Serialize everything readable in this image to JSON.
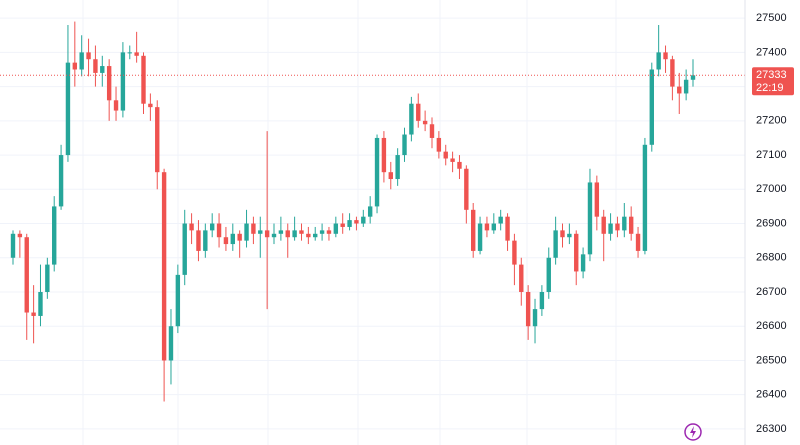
{
  "chart_data": {
    "type": "candlestick",
    "candles": [
      [
        26800,
        26880,
        26780,
        26870
      ],
      [
        26870,
        26880,
        26800,
        26860
      ],
      [
        26860,
        26870,
        26560,
        26640
      ],
      [
        26640,
        26720,
        26550,
        26630
      ],
      [
        26630,
        26780,
        26600,
        26700
      ],
      [
        26700,
        26800,
        26680,
        26780
      ],
      [
        26780,
        26980,
        26760,
        26950
      ],
      [
        26950,
        27130,
        26940,
        27100
      ],
      [
        27100,
        27480,
        27080,
        27370
      ],
      [
        27370,
        27490,
        27300,
        27350
      ],
      [
        27350,
        27450,
        27330,
        27400
      ],
      [
        27400,
        27440,
        27330,
        27380
      ],
      [
        27380,
        27420,
        27300,
        27340
      ],
      [
        27340,
        27390,
        27300,
        27360
      ],
      [
        27360,
        27380,
        27200,
        27260
      ],
      [
        27260,
        27300,
        27200,
        27230
      ],
      [
        27230,
        27430,
        27210,
        27400
      ],
      [
        27400,
        27420,
        27380,
        27400
      ],
      [
        27400,
        27460,
        27370,
        27390
      ],
      [
        27390,
        27400,
        27220,
        27250
      ],
      [
        27250,
        27280,
        27200,
        27240
      ],
      [
        27240,
        27260,
        27000,
        27050
      ],
      [
        27050,
        27060,
        26380,
        26500
      ],
      [
        26500,
        26650,
        26430,
        26600
      ],
      [
        26600,
        26780,
        26580,
        26750
      ],
      [
        26750,
        26940,
        26720,
        26900
      ],
      [
        26900,
        26930,
        26840,
        26880
      ],
      [
        26880,
        26910,
        26790,
        26820
      ],
      [
        26820,
        26900,
        26800,
        26880
      ],
      [
        26880,
        26930,
        26860,
        26900
      ],
      [
        26900,
        26930,
        26830,
        26860
      ],
      [
        26860,
        26890,
        26820,
        26840
      ],
      [
        26840,
        26900,
        26820,
        26870
      ],
      [
        26870,
        26880,
        26800,
        26850
      ],
      [
        26850,
        26940,
        26830,
        26900
      ],
      [
        26900,
        26920,
        26840,
        26870
      ],
      [
        26870,
        26920,
        26800,
        26880
      ],
      [
        26880,
        27170,
        26650,
        26860
      ],
      [
        26860,
        26900,
        26840,
        26870
      ],
      [
        26870,
        26920,
        26850,
        26880
      ],
      [
        26880,
        26900,
        26800,
        26860
      ],
      [
        26860,
        26920,
        26850,
        26880
      ],
      [
        26880,
        26900,
        26850,
        26870
      ],
      [
        26870,
        26890,
        26840,
        26860
      ],
      [
        26860,
        26890,
        26850,
        26870
      ],
      [
        26870,
        26900,
        26850,
        26880
      ],
      [
        26880,
        26890,
        26850,
        26870
      ],
      [
        26870,
        26920,
        26860,
        26900
      ],
      [
        26900,
        26930,
        26870,
        26890
      ],
      [
        26890,
        26930,
        26880,
        26910
      ],
      [
        26910,
        26920,
        26880,
        26900
      ],
      [
        26900,
        26940,
        26890,
        26920
      ],
      [
        26920,
        26980,
        26900,
        26950
      ],
      [
        26950,
        27160,
        26930,
        27150
      ],
      [
        27150,
        27170,
        27020,
        27050
      ],
      [
        27050,
        27080,
        27000,
        27030
      ],
      [
        27030,
        27120,
        27010,
        27100
      ],
      [
        27100,
        27180,
        27080,
        27160
      ],
      [
        27160,
        27270,
        27140,
        27250
      ],
      [
        27250,
        27280,
        27180,
        27200
      ],
      [
        27200,
        27230,
        27170,
        27190
      ],
      [
        27190,
        27210,
        27120,
        27150
      ],
      [
        27150,
        27170,
        27090,
        27110
      ],
      [
        27110,
        27130,
        27070,
        27090
      ],
      [
        27090,
        27110,
        27050,
        27080
      ],
      [
        27080,
        27100,
        27030,
        27060
      ],
      [
        27060,
        27070,
        26900,
        26940
      ],
      [
        26940,
        26960,
        26800,
        26820
      ],
      [
        26820,
        26920,
        26810,
        26900
      ],
      [
        26900,
        26920,
        26860,
        26880
      ],
      [
        26880,
        26930,
        26870,
        26900
      ],
      [
        26900,
        26940,
        26880,
        26920
      ],
      [
        26920,
        26930,
        26820,
        26850
      ],
      [
        26850,
        26870,
        26720,
        26780
      ],
      [
        26780,
        26800,
        26660,
        26700
      ],
      [
        26700,
        26720,
        26560,
        26600
      ],
      [
        26600,
        26680,
        26550,
        26650
      ],
      [
        26650,
        26720,
        26630,
        26700
      ],
      [
        26700,
        26830,
        26680,
        26800
      ],
      [
        26800,
        26920,
        26780,
        26880
      ],
      [
        26880,
        26900,
        26830,
        26860
      ],
      [
        26860,
        26900,
        26840,
        26870
      ],
      [
        26870,
        26880,
        26720,
        26760
      ],
      [
        26760,
        26830,
        26740,
        26810
      ],
      [
        26810,
        27060,
        26790,
        27020
      ],
      [
        27020,
        27040,
        26880,
        26920
      ],
      [
        26920,
        26940,
        26790,
        26870
      ],
      [
        26870,
        26930,
        26850,
        26900
      ],
      [
        26900,
        26920,
        26860,
        26880
      ],
      [
        26880,
        26960,
        26860,
        26920
      ],
      [
        26920,
        26950,
        26850,
        26870
      ],
      [
        26870,
        26890,
        26800,
        26820
      ],
      [
        26820,
        27150,
        26810,
        27130
      ],
      [
        27130,
        27370,
        27110,
        27350
      ],
      [
        27350,
        27480,
        27330,
        27400
      ],
      [
        27400,
        27420,
        27340,
        27380
      ],
      [
        27380,
        27390,
        27260,
        27300
      ],
      [
        27300,
        27340,
        27220,
        27280
      ],
      [
        27280,
        27350,
        27260,
        27320
      ],
      [
        27320,
        27380,
        27300,
        27333
      ]
    ],
    "up_color": "#26a69a",
    "down_color": "#ef5350",
    "ylim": [
      26253,
      27553
    ],
    "yticks": [
      26300,
      26400,
      26500,
      26600,
      26700,
      26800,
      26900,
      27000,
      27100,
      27200,
      27300,
      27400,
      27500
    ],
    "grid": true,
    "last_price": 27333,
    "countdown": "22:19"
  }
}
